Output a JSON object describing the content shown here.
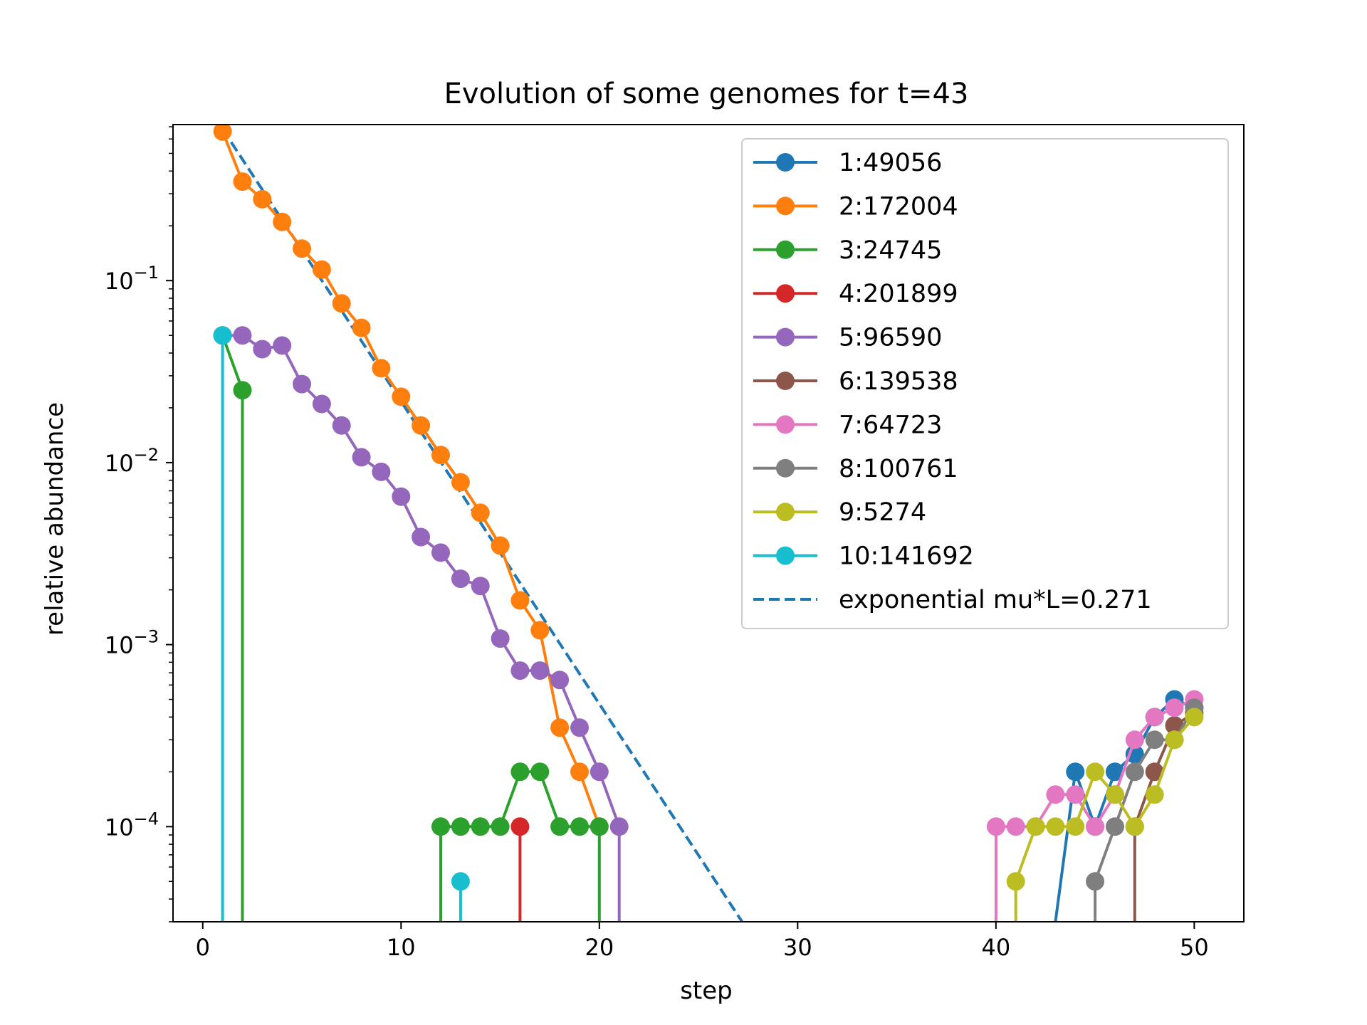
{
  "chart_data": {
    "type": "line",
    "title": "Evolution of some genomes for t=43",
    "xlabel": "step",
    "ylabel": "relative abundance",
    "yscale": "log",
    "xlim": [
      -1.5,
      52.5
    ],
    "ylim": [
      3e-05,
      0.72
    ],
    "xticks": [
      0,
      10,
      20,
      30,
      40,
      50
    ],
    "xtick_labels": [
      "0",
      "10",
      "20",
      "30",
      "40",
      "50"
    ],
    "yticks": [
      {
        "value": 0.1,
        "base": "10",
        "exp": "−1"
      },
      {
        "value": 0.01,
        "base": "10",
        "exp": "−2"
      },
      {
        "value": 0.001,
        "base": "10",
        "exp": "−3"
      },
      {
        "value": 0.0001,
        "base": "10",
        "exp": "−4"
      }
    ],
    "grid": false,
    "legend_position": "top-right",
    "series": [
      {
        "name": "1:49056",
        "color": "#1f77b4",
        "x": [
          43,
          44,
          45,
          46,
          47,
          48,
          49,
          50
        ],
        "y": [
          0,
          0.0002,
          0.0001,
          0.0002,
          0.00025,
          0.0004,
          0.0005,
          0.00045
        ]
      },
      {
        "name": "2:172004",
        "color": "#ff7f0e",
        "x": [
          1,
          2,
          3,
          4,
          5,
          6,
          7,
          8,
          9,
          10,
          11,
          12,
          13,
          14,
          15,
          16,
          17,
          18,
          19,
          20
        ],
        "y": [
          0.66,
          0.35,
          0.28,
          0.21,
          0.15,
          0.115,
          0.075,
          0.055,
          0.033,
          0.023,
          0.016,
          0.011,
          0.0078,
          0.0053,
          0.0035,
          0.00175,
          0.0012,
          0.00035,
          0.0002,
          0.0001
        ]
      },
      {
        "name": "3:24745",
        "color": "#2ca02c",
        "x": [
          1,
          2,
          2
        ],
        "y": [
          0.05,
          0.025,
          0
        ],
        "x2": [
          12,
          12,
          13,
          14,
          15,
          16,
          17,
          18,
          19,
          20,
          20
        ],
        "y2": [
          0,
          0.0001,
          0.0001,
          0.0001,
          0.0001,
          0.0002,
          0.0002,
          0.0001,
          0.0001,
          0.0001,
          0
        ]
      },
      {
        "name": "4:201899",
        "color": "#d62728",
        "x": [
          16,
          16
        ],
        "y": [
          0,
          0.0001
        ]
      },
      {
        "name": "5:96590",
        "color": "#9467bd",
        "x": [
          1,
          2,
          3,
          4,
          5,
          6,
          7,
          8,
          9,
          10,
          11,
          12,
          13,
          14,
          15,
          16,
          17,
          18,
          19,
          20,
          21,
          21
        ],
        "y": [
          0.05,
          0.05,
          0.042,
          0.044,
          0.027,
          0.021,
          0.016,
          0.0107,
          0.0089,
          0.0065,
          0.0039,
          0.0032,
          0.0023,
          0.0021,
          0.00108,
          0.00072,
          0.00072,
          0.00064,
          0.00035,
          0.0002,
          0.0001,
          0
        ]
      },
      {
        "name": "6:139538",
        "color": "#8c564b",
        "x": [
          47,
          47,
          48,
          49,
          50
        ],
        "y": [
          0,
          0.0001,
          0.0002,
          0.00036,
          0.00042
        ]
      },
      {
        "name": "7:64723",
        "color": "#e377c2",
        "x": [
          40,
          40,
          41,
          42,
          43,
          44,
          45,
          46,
          47,
          48,
          49,
          50
        ],
        "y": [
          0,
          0.0001,
          0.0001,
          0.0001,
          0.00015,
          0.00015,
          0.0001,
          0.00015,
          0.0003,
          0.0004,
          0.00045,
          0.0005
        ]
      },
      {
        "name": "8:100761",
        "color": "#7f7f7f",
        "x": [
          45,
          45,
          46,
          47,
          48,
          49,
          50
        ],
        "y": [
          0,
          5e-05,
          0.0001,
          0.0002,
          0.0003,
          0.0003,
          0.00045
        ]
      },
      {
        "name": "9:5274",
        "color": "#bcbd22",
        "x": [
          41,
          41,
          42,
          43,
          44,
          45,
          46,
          47,
          48,
          49,
          50
        ],
        "y": [
          0,
          5e-05,
          0.0001,
          0.0001,
          0.0001,
          0.0002,
          0.00015,
          0.0001,
          0.00015,
          0.0003,
          0.0004
        ]
      },
      {
        "name": "10:141692",
        "color": "#17becf",
        "x": [
          1,
          1
        ],
        "y": [
          0,
          0.05
        ],
        "x2": [
          13,
          13
        ],
        "y2": [
          0,
          5e-05
        ]
      }
    ],
    "fit_line": {
      "name": "exponential mu*L=0.271",
      "color": "#1f77b4",
      "dash": "dashed",
      "x": [
        1,
        27.2
      ],
      "y": [
        0.68,
        3e-05
      ]
    }
  }
}
